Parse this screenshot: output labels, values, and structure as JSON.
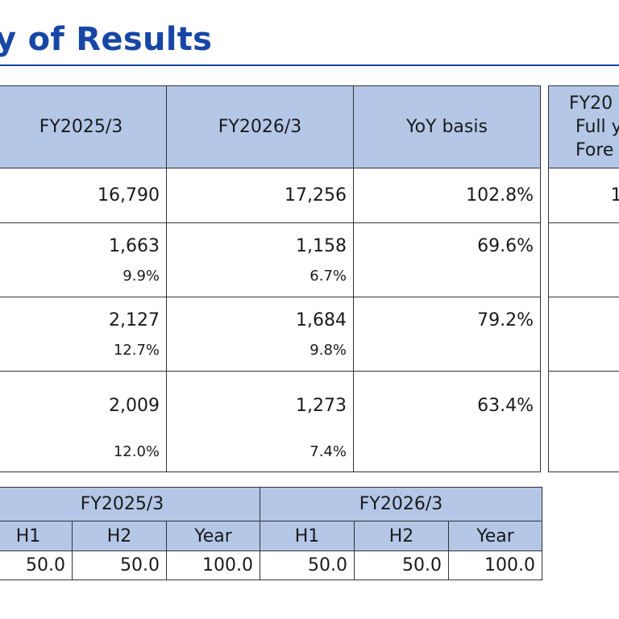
{
  "title": "y of Results",
  "results": {
    "headers": [
      "FY2025/3",
      "FY2026/3",
      "YoY basis"
    ],
    "rows": [
      {
        "fy2025": "16,790",
        "fy2025_pct": "",
        "fy2026": "17,256",
        "fy2026_pct": "",
        "yoy": "102.8%"
      },
      {
        "fy2025": "1,663",
        "fy2025_pct": "9.9%",
        "fy2026": "1,158",
        "fy2026_pct": "6.7%",
        "yoy": "69.6%"
      },
      {
        "fy2025": "2,127",
        "fy2025_pct": "12.7%",
        "fy2026": "1,684",
        "fy2026_pct": "9.8%",
        "yoy": "79.2%"
      },
      {
        "fy2025": "2,009",
        "fy2025_pct": "12.0%",
        "fy2026": "1,273",
        "fy2026_pct": "7.4%",
        "yoy": "63.4%"
      }
    ]
  },
  "forecast": {
    "header_line1": "FY20",
    "header_line2": "Full y",
    "header_line3": "Fore",
    "row1_fragment": "1"
  },
  "dividend": {
    "group_headers": [
      "FY2025/3",
      "FY2026/3"
    ],
    "sub_headers": [
      "H1",
      "H2",
      "Year",
      "H1",
      "H2",
      "Year"
    ],
    "values": [
      "50.0",
      "50.0",
      "100.0",
      "50.0",
      "50.0",
      "100.0"
    ]
  },
  "colors": {
    "accent": "#1747a6",
    "header_fill": "#b4c7e7"
  }
}
